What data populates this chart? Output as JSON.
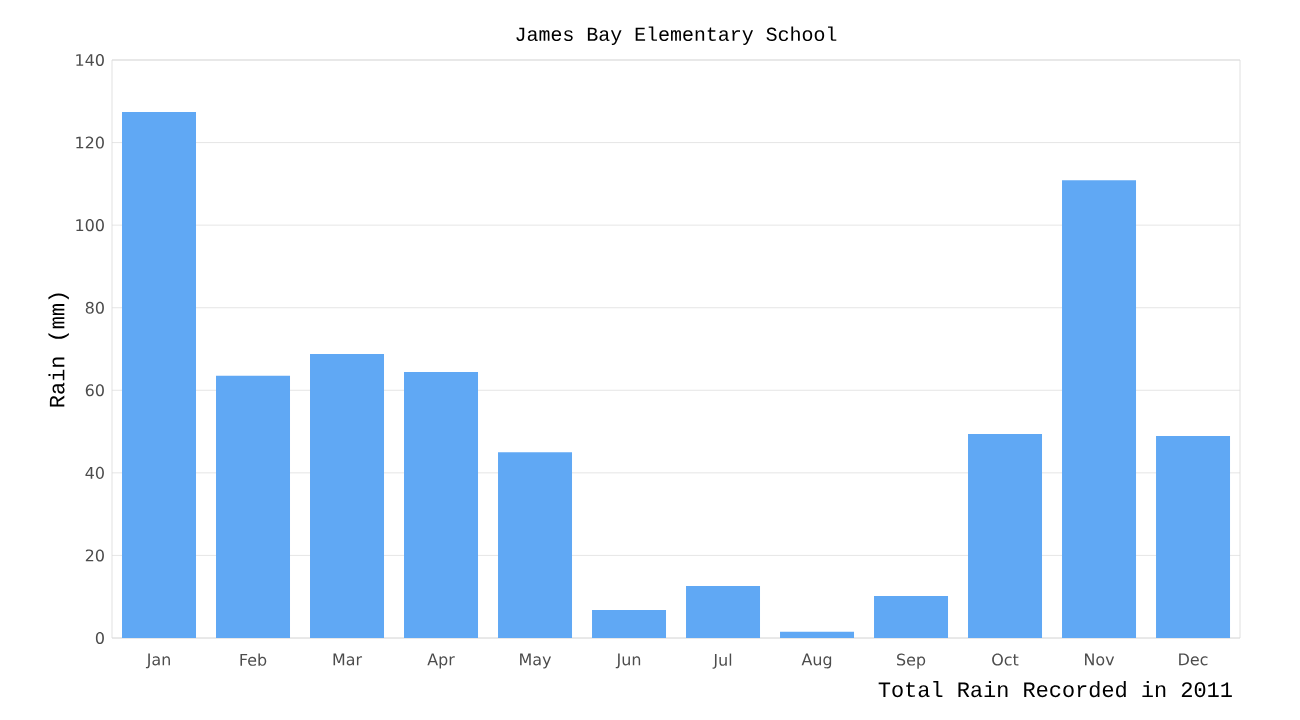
{
  "chart_data": {
    "type": "bar",
    "title": "James Bay Elementary School",
    "xlabel": "Total Rain Recorded in 2011",
    "ylabel": "Rain (mm)",
    "categories": [
      "Jan",
      "Feb",
      "Mar",
      "Apr",
      "May",
      "Jun",
      "Jul",
      "Aug",
      "Sep",
      "Oct",
      "Nov",
      "Dec"
    ],
    "values": [
      127.4,
      63.5,
      68.8,
      64.4,
      45.0,
      6.8,
      12.6,
      1.5,
      10.2,
      49.4,
      110.9,
      48.9
    ],
    "color": "#60a8f4",
    "ylim": [
      0,
      140
    ],
    "yticks": [
      0,
      20,
      40,
      60,
      80,
      100,
      120,
      140
    ],
    "grid": "y"
  }
}
